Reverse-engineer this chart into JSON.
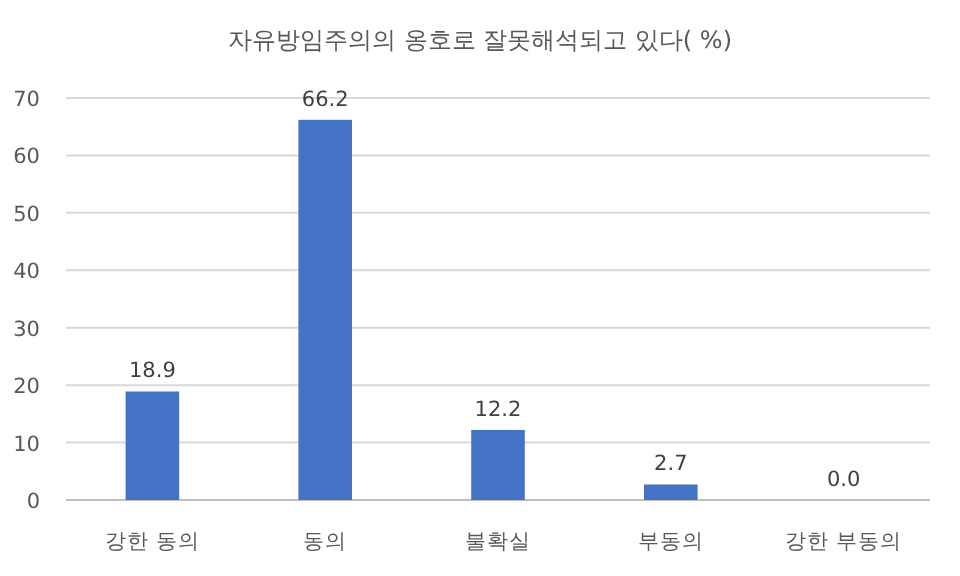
{
  "chart_data": {
    "type": "bar",
    "title": "자유방임주의의 옹호로 잘못해석되고 있다( %)",
    "categories": [
      "강한 동의",
      "동의",
      "불확실",
      "부동의",
      "강한 부동의"
    ],
    "values": [
      18.9,
      66.2,
      12.2,
      2.7,
      0.0
    ],
    "value_labels": [
      "18.9",
      "66.2",
      "12.2",
      "2.7",
      "0.0"
    ],
    "color": "#4472c4",
    "ylim": [
      0,
      70
    ],
    "yticks": [
      0,
      10,
      20,
      30,
      40,
      50,
      60,
      70
    ],
    "grid": "y"
  }
}
